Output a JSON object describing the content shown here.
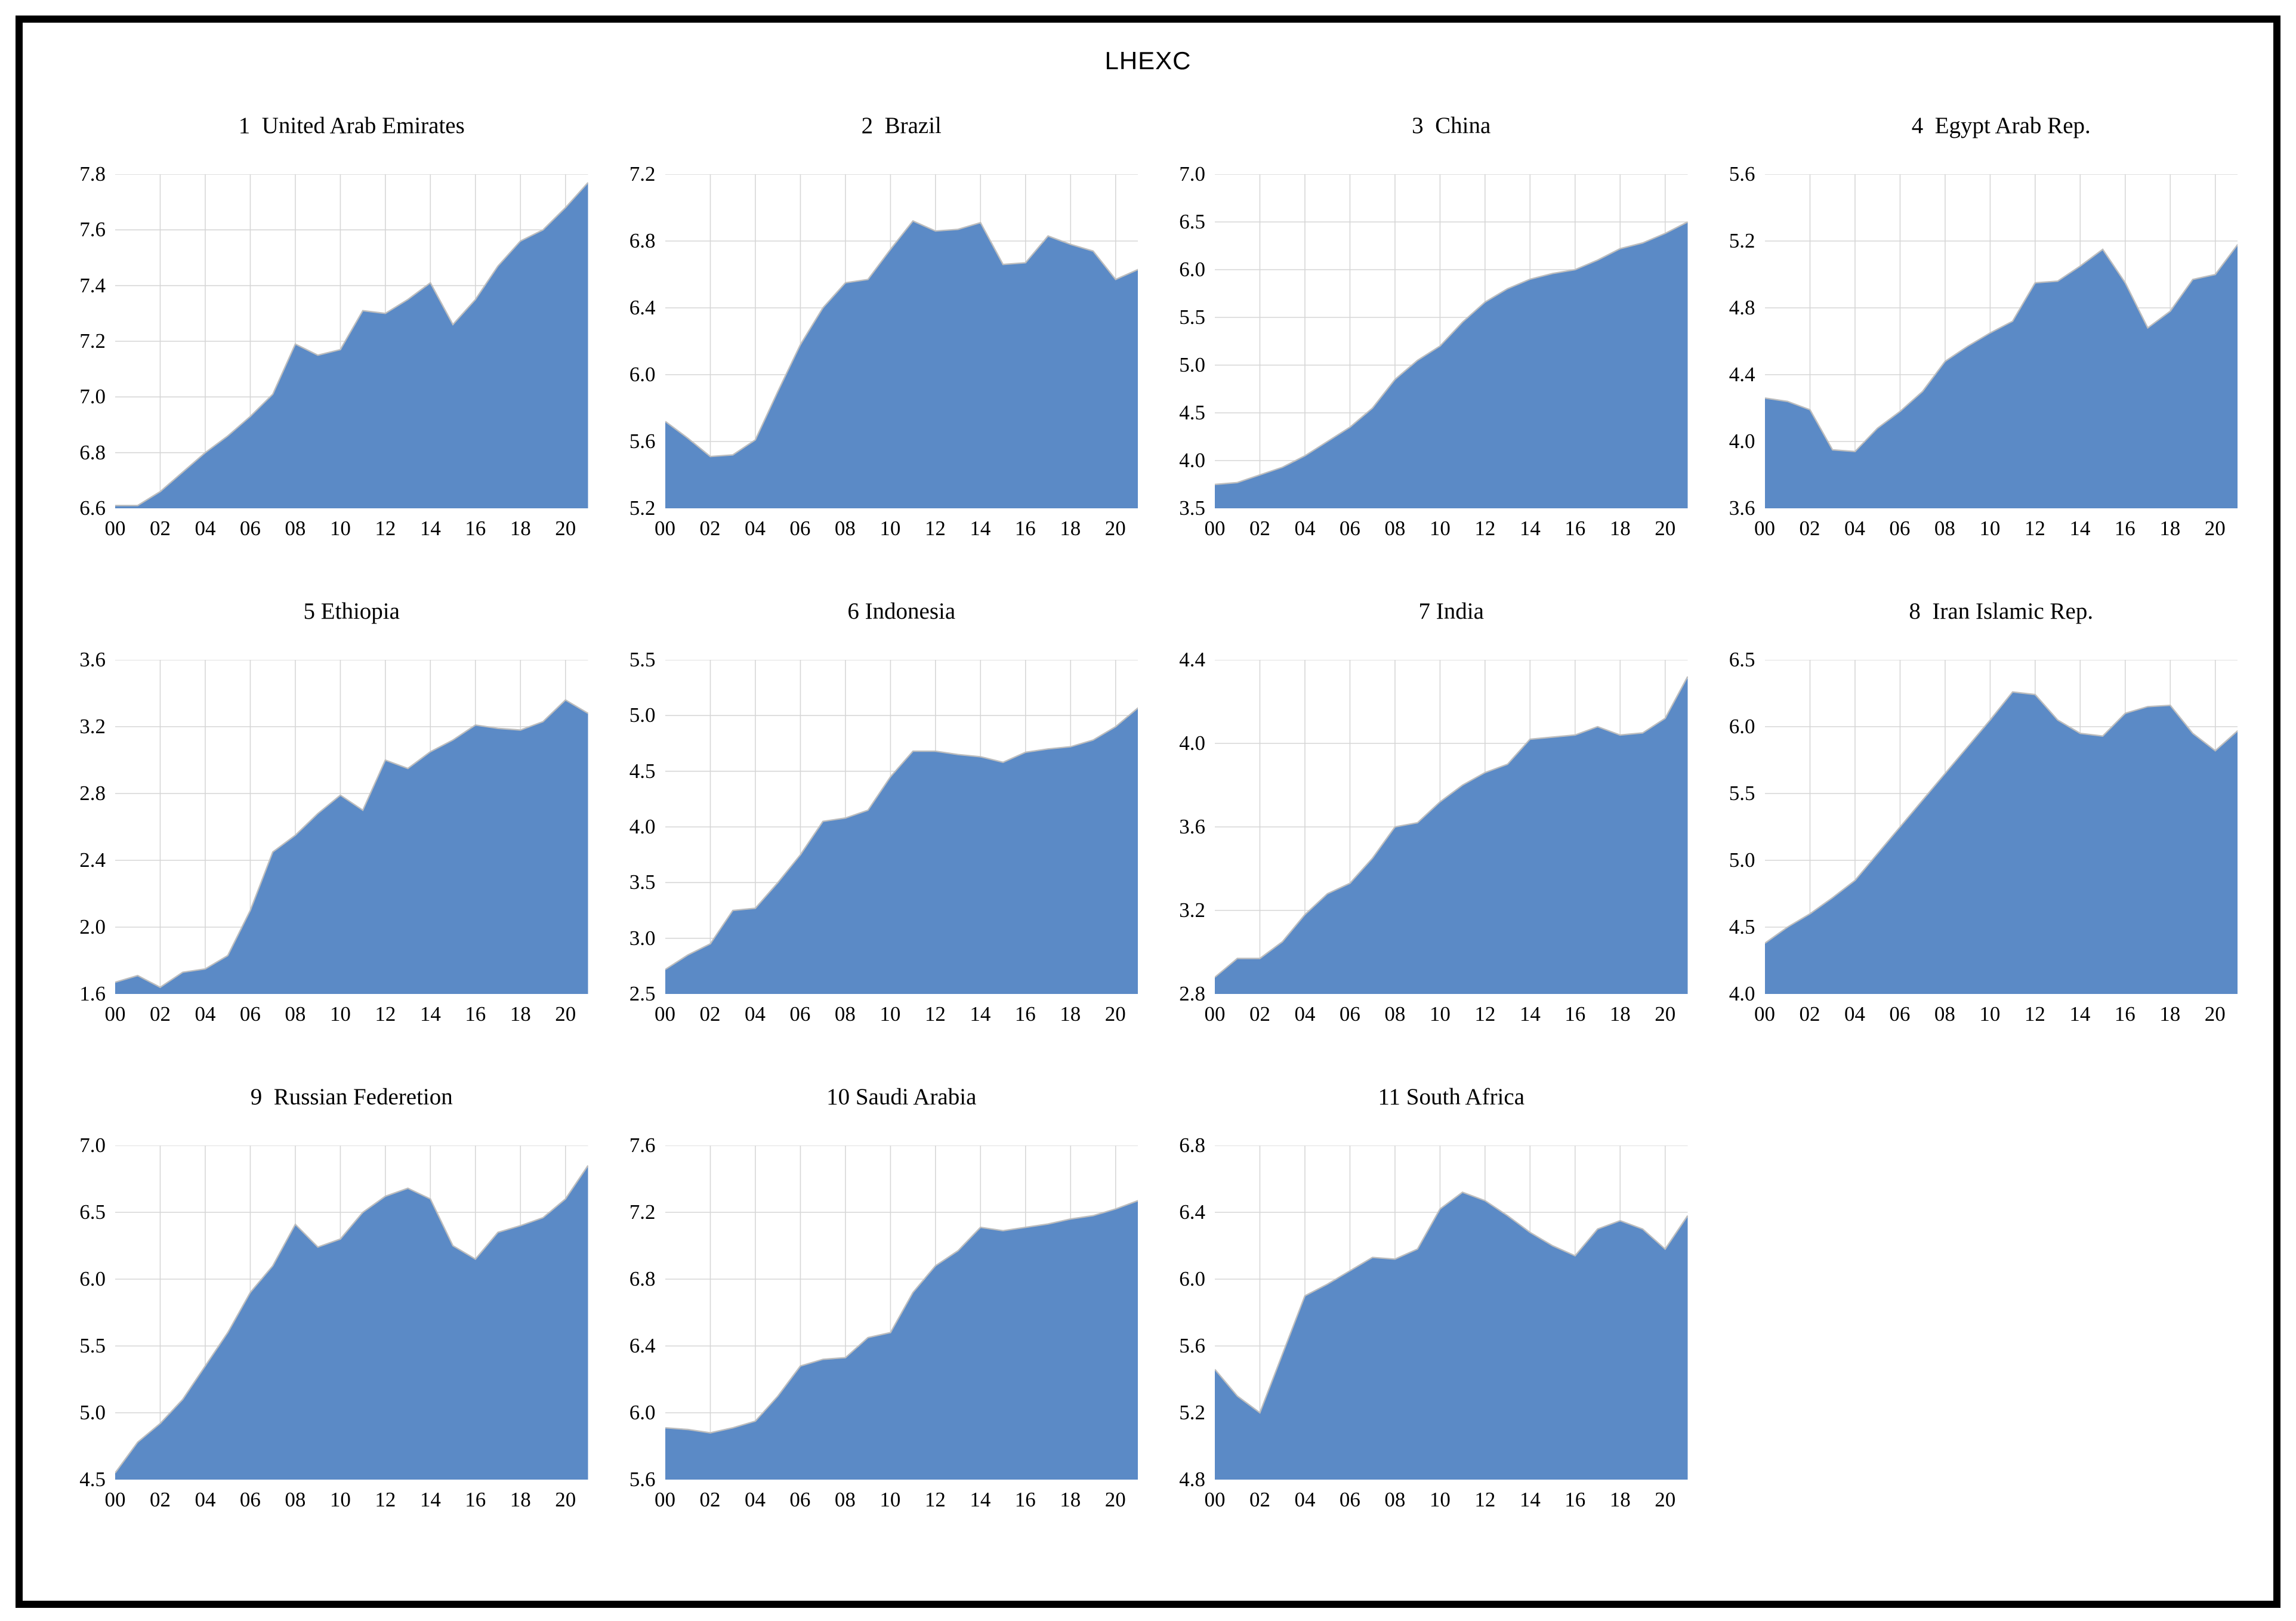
{
  "page": {
    "title": "LHEXC"
  },
  "style": {
    "area_fill": "#5b8ac6",
    "area_edge": "#bdbdbd",
    "grid_color": "#d6d6d6",
    "frame_color": "#000000",
    "background": "#ffffff",
    "text_color": "#000000"
  },
  "axes_shared": {
    "x_tick_labels": [
      "00",
      "02",
      "04",
      "06",
      "08",
      "10",
      "12",
      "14",
      "16",
      "18",
      "20"
    ],
    "x_tick_positions": [
      0,
      2,
      4,
      6,
      8,
      10,
      12,
      14,
      16,
      18,
      20
    ],
    "x_range": [
      0,
      21
    ],
    "grid": "on",
    "legend": "none"
  },
  "chart_data": [
    {
      "type": "area",
      "panel_number": "1",
      "country": "United Arab Emirates",
      "title": "1  United Arab Emirates",
      "ylim": [
        6.6,
        7.8
      ],
      "y_ticks": [
        "6.6",
        "6.8",
        "7.0",
        "7.2",
        "7.4",
        "7.6",
        "7.8"
      ],
      "x_years": [
        2000,
        2001,
        2002,
        2003,
        2004,
        2005,
        2006,
        2007,
        2008,
        2009,
        2010,
        2011,
        2012,
        2013,
        2014,
        2015,
        2016,
        2017,
        2018,
        2019,
        2020,
        2021
      ],
      "values": [
        6.61,
        6.61,
        6.66,
        6.73,
        6.8,
        6.86,
        6.93,
        7.01,
        7.19,
        7.15,
        7.17,
        7.31,
        7.3,
        7.35,
        7.41,
        7.26,
        7.35,
        7.47,
        7.56,
        7.6,
        7.68,
        7.77
      ]
    },
    {
      "type": "area",
      "panel_number": "2",
      "country": "Brazil",
      "title": "2  Brazil",
      "ylim": [
        5.2,
        7.2
      ],
      "y_ticks": [
        "5.2",
        "5.6",
        "6.0",
        "6.4",
        "6.8",
        "7.2"
      ],
      "x_years": [
        2000,
        2001,
        2002,
        2003,
        2004,
        2005,
        2006,
        2007,
        2008,
        2009,
        2010,
        2011,
        2012,
        2013,
        2014,
        2015,
        2016,
        2017,
        2018,
        2019,
        2020,
        2021
      ],
      "values": [
        5.72,
        5.62,
        5.51,
        5.52,
        5.61,
        5.9,
        6.18,
        6.4,
        6.55,
        6.57,
        6.75,
        6.92,
        6.86,
        6.87,
        6.91,
        6.66,
        6.67,
        6.83,
        6.78,
        6.74,
        6.57,
        6.63
      ]
    },
    {
      "type": "area",
      "panel_number": "3",
      "country": "China",
      "title": "3  China",
      "ylim": [
        3.5,
        7.0
      ],
      "y_ticks": [
        "3.5",
        "4.0",
        "4.5",
        "5.0",
        "5.5",
        "6.0",
        "6.5",
        "7.0"
      ],
      "x_years": [
        2000,
        2001,
        2002,
        2003,
        2004,
        2005,
        2006,
        2007,
        2008,
        2009,
        2010,
        2011,
        2012,
        2013,
        2014,
        2015,
        2016,
        2017,
        2018,
        2019,
        2020,
        2021
      ],
      "values": [
        3.75,
        3.77,
        3.85,
        3.93,
        4.05,
        4.2,
        4.35,
        4.55,
        4.85,
        5.05,
        5.2,
        5.45,
        5.66,
        5.8,
        5.9,
        5.96,
        6.0,
        6.1,
        6.22,
        6.28,
        6.38,
        6.5
      ]
    },
    {
      "type": "area",
      "panel_number": "4",
      "country": "Egypt Arab Rep.",
      "title": "4  Egypt Arab Rep.",
      "ylim": [
        3.6,
        5.6
      ],
      "y_ticks": [
        "3.6",
        "4.0",
        "4.4",
        "4.8",
        "5.2",
        "5.6"
      ],
      "x_years": [
        2000,
        2001,
        2002,
        2003,
        2004,
        2005,
        2006,
        2007,
        2008,
        2009,
        2010,
        2011,
        2012,
        2013,
        2014,
        2015,
        2016,
        2017,
        2018,
        2019,
        2020,
        2021
      ],
      "values": [
        4.26,
        4.24,
        4.19,
        3.95,
        3.94,
        4.08,
        4.18,
        4.3,
        4.48,
        4.57,
        4.65,
        4.72,
        4.95,
        4.96,
        5.05,
        5.15,
        4.95,
        4.68,
        4.78,
        4.97,
        5.0,
        5.18
      ]
    },
    {
      "type": "area",
      "panel_number": "5",
      "country": "Ethiopia",
      "title": "5 Ethiopia",
      "ylim": [
        1.6,
        3.6
      ],
      "y_ticks": [
        "1.6",
        "2.0",
        "2.4",
        "2.8",
        "3.2",
        "3.6"
      ],
      "x_years": [
        2000,
        2001,
        2002,
        2003,
        2004,
        2005,
        2006,
        2007,
        2008,
        2009,
        2010,
        2011,
        2012,
        2013,
        2014,
        2015,
        2016,
        2017,
        2018,
        2019,
        2020,
        2021
      ],
      "values": [
        1.67,
        1.71,
        1.64,
        1.73,
        1.75,
        1.83,
        2.1,
        2.45,
        2.55,
        2.68,
        2.79,
        2.7,
        3.0,
        2.95,
        3.05,
        3.12,
        3.21,
        3.19,
        3.18,
        3.23,
        3.36,
        3.28
      ]
    },
    {
      "type": "area",
      "panel_number": "6",
      "country": "Indonesia",
      "title": "6 Indonesia",
      "ylim": [
        2.5,
        5.5
      ],
      "y_ticks": [
        "2.5",
        "3.0",
        "3.5",
        "4.0",
        "4.5",
        "5.0",
        "5.5"
      ],
      "x_years": [
        2000,
        2001,
        2002,
        2003,
        2004,
        2005,
        2006,
        2007,
        2008,
        2009,
        2010,
        2011,
        2012,
        2013,
        2014,
        2015,
        2016,
        2017,
        2018,
        2019,
        2020,
        2021
      ],
      "values": [
        2.72,
        2.85,
        2.95,
        3.25,
        3.27,
        3.5,
        3.75,
        4.05,
        4.08,
        4.15,
        4.45,
        4.68,
        4.68,
        4.65,
        4.63,
        4.58,
        4.67,
        4.7,
        4.72,
        4.78,
        4.9,
        5.07
      ]
    },
    {
      "type": "area",
      "panel_number": "7",
      "country": "India",
      "title": "7 India",
      "ylim": [
        2.8,
        4.4
      ],
      "y_ticks": [
        "2.8",
        "3.2",
        "3.6",
        "4.0",
        "4.4"
      ],
      "x_years": [
        2000,
        2001,
        2002,
        2003,
        2004,
        2005,
        2006,
        2007,
        2008,
        2009,
        2010,
        2011,
        2012,
        2013,
        2014,
        2015,
        2016,
        2017,
        2018,
        2019,
        2020,
        2021
      ],
      "values": [
        2.88,
        2.97,
        2.97,
        3.05,
        3.18,
        3.28,
        3.33,
        3.45,
        3.6,
        3.62,
        3.72,
        3.8,
        3.86,
        3.9,
        4.02,
        4.03,
        4.04,
        4.08,
        4.04,
        4.05,
        4.12,
        4.32
      ]
    },
    {
      "type": "area",
      "panel_number": "8",
      "country": "Iran Islamic Rep.",
      "title": "8  Iran Islamic Rep.",
      "ylim": [
        4.0,
        6.5
      ],
      "y_ticks": [
        "4.0",
        "4.5",
        "5.0",
        "5.5",
        "6.0",
        "6.5"
      ],
      "x_years": [
        2000,
        2001,
        2002,
        2003,
        2004,
        2005,
        2006,
        2007,
        2008,
        2009,
        2010,
        2011,
        2012,
        2013,
        2014,
        2015,
        2016,
        2017,
        2018,
        2019,
        2020,
        2021
      ],
      "values": [
        4.38,
        4.5,
        4.6,
        4.72,
        4.85,
        5.05,
        5.25,
        5.45,
        5.65,
        5.85,
        6.05,
        6.26,
        6.24,
        6.05,
        5.95,
        5.93,
        6.1,
        6.15,
        6.16,
        5.95,
        5.82,
        5.97
      ]
    },
    {
      "type": "area",
      "panel_number": "9",
      "country": "Russian Federetion",
      "title": "9  Russian Federetion",
      "ylim": [
        4.5,
        7.0
      ],
      "y_ticks": [
        "4.5",
        "5.0",
        "5.5",
        "6.0",
        "6.5",
        "7.0"
      ],
      "x_years": [
        2000,
        2001,
        2002,
        2003,
        2004,
        2005,
        2006,
        2007,
        2008,
        2009,
        2010,
        2011,
        2012,
        2013,
        2014,
        2015,
        2016,
        2017,
        2018,
        2019,
        2020,
        2021
      ],
      "values": [
        4.55,
        4.78,
        4.92,
        5.1,
        5.35,
        5.6,
        5.9,
        6.1,
        6.41,
        6.24,
        6.3,
        6.5,
        6.62,
        6.68,
        6.6,
        6.25,
        6.15,
        6.35,
        6.4,
        6.46,
        6.6,
        6.85
      ]
    },
    {
      "type": "area",
      "panel_number": "10",
      "country": "Saudi Arabia",
      "title": "10 Saudi Arabia",
      "ylim": [
        5.6,
        7.6
      ],
      "y_ticks": [
        "5.6",
        "6.0",
        "6.4",
        "6.8",
        "7.2",
        "7.6"
      ],
      "x_years": [
        2000,
        2001,
        2002,
        2003,
        2004,
        2005,
        2006,
        2007,
        2008,
        2009,
        2010,
        2011,
        2012,
        2013,
        2014,
        2015,
        2016,
        2017,
        2018,
        2019,
        2020,
        2021
      ],
      "values": [
        5.91,
        5.9,
        5.88,
        5.91,
        5.95,
        6.1,
        6.28,
        6.32,
        6.33,
        6.45,
        6.48,
        6.72,
        6.88,
        6.97,
        7.11,
        7.09,
        7.11,
        7.13,
        7.16,
        7.18,
        7.22,
        7.27
      ]
    },
    {
      "type": "area",
      "panel_number": "11",
      "country": "South Africa",
      "title": "11 South Africa",
      "ylim": [
        4.8,
        6.8
      ],
      "y_ticks": [
        "4.8",
        "5.2",
        "5.6",
        "6.0",
        "6.4",
        "6.8"
      ],
      "x_years": [
        2000,
        2001,
        2002,
        2003,
        2004,
        2005,
        2006,
        2007,
        2008,
        2009,
        2010,
        2011,
        2012,
        2013,
        2014,
        2015,
        2016,
        2017,
        2018,
        2019,
        2020,
        2021
      ],
      "values": [
        5.46,
        5.3,
        5.2,
        5.55,
        5.9,
        5.97,
        6.05,
        6.13,
        6.12,
        6.18,
        6.42,
        6.52,
        6.47,
        6.38,
        6.28,
        6.2,
        6.14,
        6.3,
        6.35,
        6.3,
        6.18,
        6.38
      ]
    }
  ]
}
